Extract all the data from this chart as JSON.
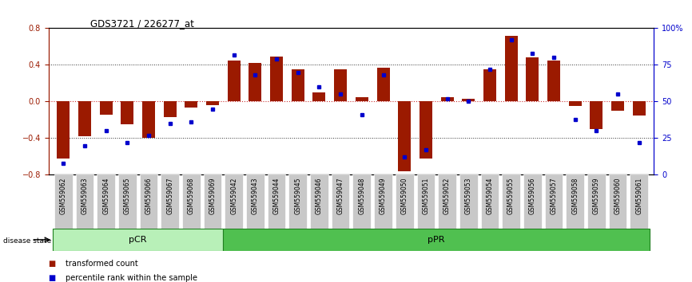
{
  "title": "GDS3721 / 226277_at",
  "samples": [
    "GSM559062",
    "GSM559063",
    "GSM559064",
    "GSM559065",
    "GSM559066",
    "GSM559067",
    "GSM559068",
    "GSM559069",
    "GSM559042",
    "GSM559043",
    "GSM559044",
    "GSM559045",
    "GSM559046",
    "GSM559047",
    "GSM559048",
    "GSM559049",
    "GSM559050",
    "GSM559051",
    "GSM559052",
    "GSM559053",
    "GSM559054",
    "GSM559055",
    "GSM559056",
    "GSM559057",
    "GSM559058",
    "GSM559059",
    "GSM559060",
    "GSM559061"
  ],
  "bar_values": [
    -0.62,
    -0.38,
    -0.14,
    -0.25,
    -0.4,
    -0.17,
    -0.07,
    -0.04,
    0.45,
    0.42,
    0.49,
    0.35,
    0.1,
    0.35,
    0.05,
    0.37,
    -0.76,
    -0.62,
    0.05,
    0.03,
    0.35,
    0.72,
    0.48,
    0.45,
    -0.05,
    -0.3,
    -0.1,
    -0.15
  ],
  "dot_values": [
    8,
    20,
    30,
    22,
    27,
    35,
    36,
    45,
    82,
    68,
    79,
    70,
    60,
    55,
    41,
    68,
    12,
    17,
    52,
    50,
    72,
    92,
    83,
    80,
    38,
    30,
    55,
    22
  ],
  "pCR_count": 8,
  "pPR_count": 20,
  "ylim": [
    -0.8,
    0.8
  ],
  "y2lim": [
    0,
    100
  ],
  "bar_color": "#9B1A00",
  "dot_color": "#0000CC",
  "pCR_color": "#B8F0B8",
  "pPR_color": "#50C050",
  "bg_color": "#C8C8C8",
  "zero_line_color": "#CC3333",
  "dotted_line_color": "#303030"
}
